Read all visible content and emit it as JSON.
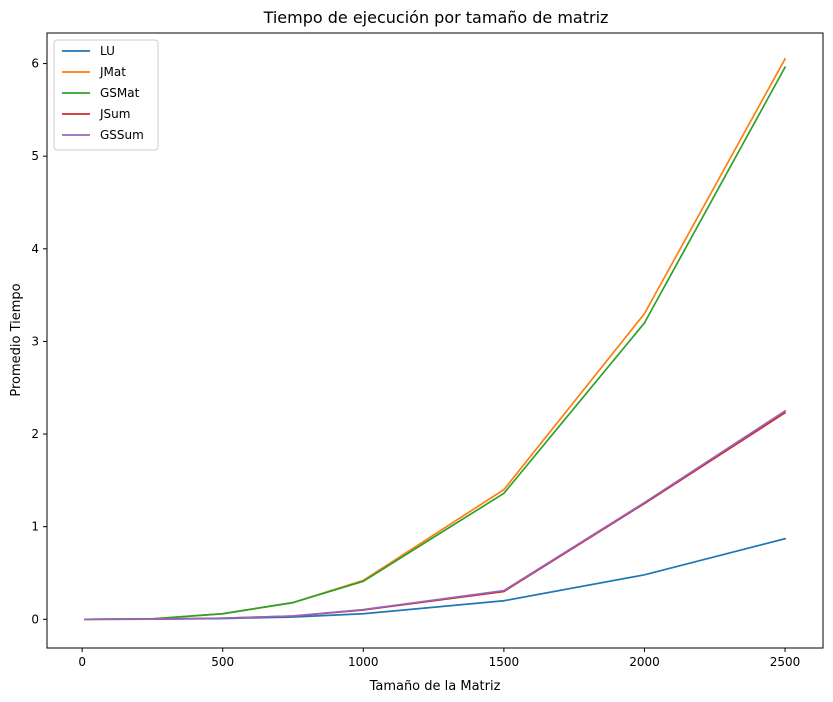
{
  "chart_data": {
    "type": "line",
    "title": "Tiempo de ejecución por tamaño de matriz",
    "xlabel": "Tamaño de la Matriz",
    "ylabel": "Promedio Tiempo",
    "x": [
      10,
      250,
      500,
      750,
      1000,
      1500,
      2000,
      2500
    ],
    "xlim": [
      -125,
      2635
    ],
    "ylim": [
      -0.31,
      6.33
    ],
    "xticks": [
      "0",
      "500",
      "1000",
      "1500",
      "2000",
      "2500"
    ],
    "yticks": [
      "0",
      "1",
      "2",
      "3",
      "4",
      "5",
      "6"
    ],
    "grid": false,
    "legend_position": "top-left",
    "series": [
      {
        "name": "LU",
        "color": "#1f77b4",
        "values": [
          0.0,
          0.001,
          0.008,
          0.025,
          0.06,
          0.2,
          0.48,
          0.87
        ]
      },
      {
        "name": "JMat",
        "color": "#ff7f0e",
        "values": [
          0.0,
          0.005,
          0.06,
          0.18,
          0.42,
          1.4,
          3.3,
          6.05
        ]
      },
      {
        "name": "GSMat",
        "color": "#2ca02c",
        "values": [
          0.0,
          0.005,
          0.06,
          0.18,
          0.41,
          1.36,
          3.2,
          5.96
        ]
      },
      {
        "name": "JSum",
        "color": "#d62728",
        "values": [
          0.0,
          0.002,
          0.012,
          0.035,
          0.1,
          0.3,
          1.25,
          2.23
        ]
      },
      {
        "name": "GSSum",
        "color": "#9467bd",
        "values": [
          0.0,
          0.002,
          0.012,
          0.036,
          0.105,
          0.31,
          1.26,
          2.25
        ]
      }
    ]
  }
}
